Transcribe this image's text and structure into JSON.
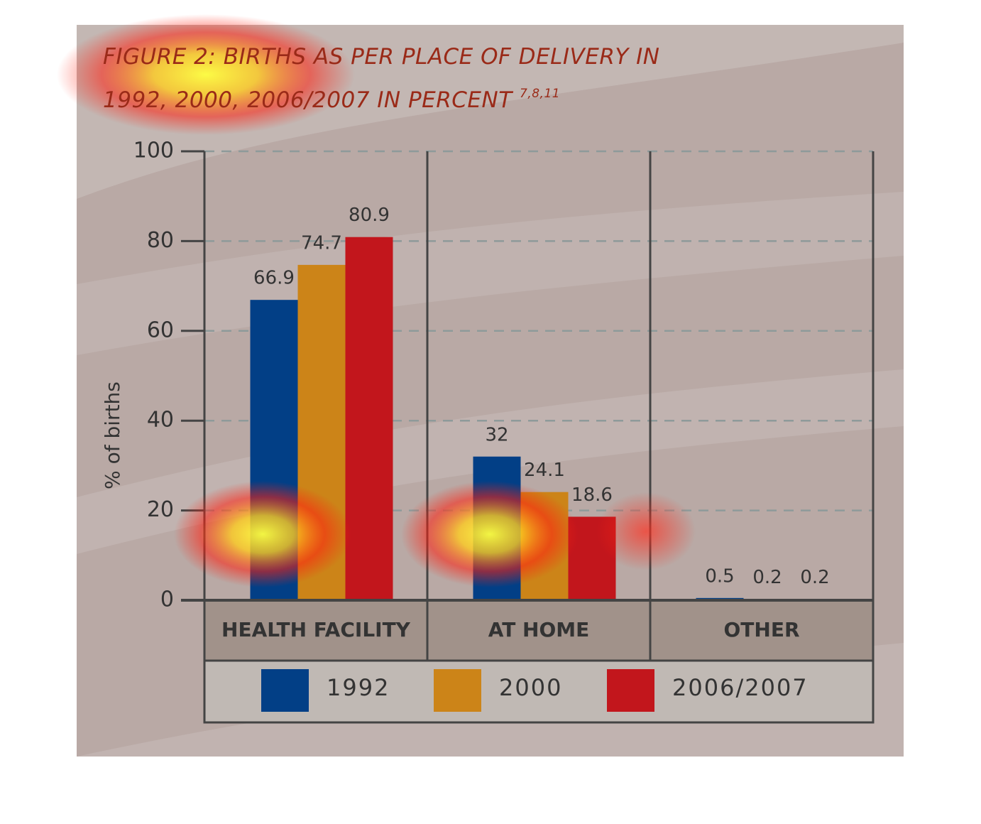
{
  "chart_data": {
    "type": "bar",
    "title": "FIGURE 2: BIRTHS AS PER PLACE OF DELIVERY IN 1992, 2000, 2006/2007 IN PERCENT",
    "title_refs": "7,8,11",
    "y_label": "% of births",
    "categories": [
      "HEALTH FACILITY",
      "AT HOME",
      "OTHER"
    ],
    "series": [
      {
        "name": "1992",
        "color": "#023f86",
        "values": [
          66.9,
          32,
          0.5
        ]
      },
      {
        "name": "2000",
        "color": "#cc8418",
        "values": [
          74.7,
          24.1,
          0.2
        ]
      },
      {
        "name": "2006/2007",
        "color": "#c2161c",
        "values": [
          80.9,
          18.6,
          0.2
        ]
      }
    ],
    "ylim": [
      0,
      100
    ],
    "yticks": [
      0,
      20,
      40,
      60,
      80,
      100
    ],
    "grid": true
  }
}
